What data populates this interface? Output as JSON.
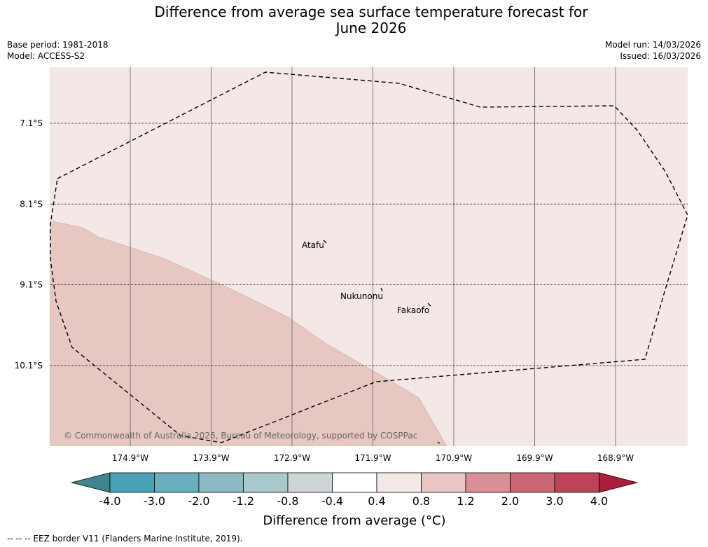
{
  "title": {
    "line1": "Difference from average sea surface temperature forecast for",
    "line2": "June 2026"
  },
  "meta": {
    "base_period": "Base period: 1981-2018",
    "model": "Model: ACCESS-S2",
    "model_run": "Model run: 14/03/2026",
    "issued": "Issued: 16/03/2026"
  },
  "map": {
    "latitude_labels": [
      "7.1°S",
      "8.1°S",
      "9.1°S",
      "10.1°S"
    ],
    "longitude_labels": [
      "174.9°W",
      "173.9°W",
      "172.9°W",
      "171.9°W",
      "170.9°W",
      "169.9°W",
      "168.9°W"
    ],
    "places": [
      {
        "name": "Atafu"
      },
      {
        "name": "Nukunonu"
      },
      {
        "name": "Fakaofo"
      }
    ],
    "copyright": "© Commonwealth of Australia 2026, Bureau of Meteorology, supported by COSPPac",
    "background_fill": "#f4e8e6",
    "warm_region_fill": "#e7c7c2"
  },
  "colorbar": {
    "tick_labels": [
      "-4.0",
      "-3.0",
      "-2.0",
      "-1.2",
      "-0.8",
      "-0.4",
      "0.4",
      "0.8",
      "1.2",
      "2.0",
      "3.0",
      "4.0"
    ],
    "colors": [
      "#3d8590",
      "#46a2b4",
      "#6aafbd",
      "#8cbac4",
      "#a9c8cc",
      "#cdd5d6",
      "#ffffff",
      "#f5e9e8",
      "#e9c6c3",
      "#d88f95",
      "#cc6672",
      "#be4356",
      "#ab1d3b"
    ],
    "label": "Difference from average (°C)"
  },
  "footnote": "--  --  -- EEZ border V11 (Flanders Marine Institute, 2019)."
}
